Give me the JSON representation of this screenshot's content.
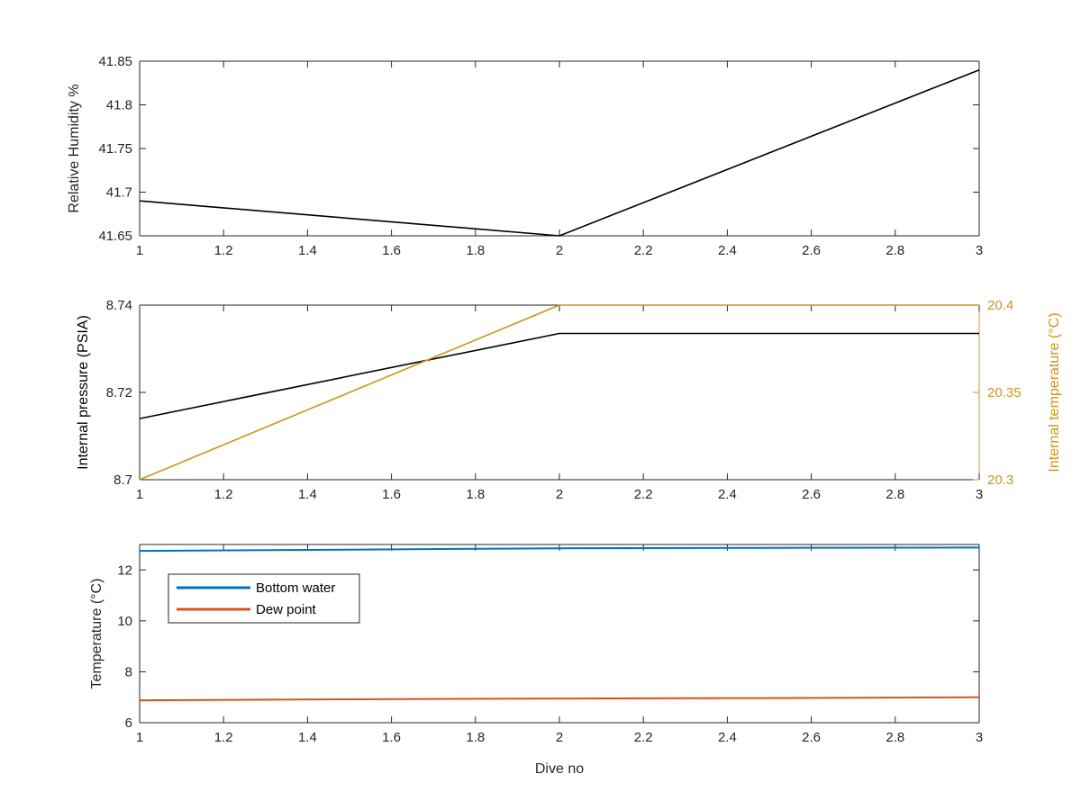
{
  "chart_data": [
    {
      "type": "line",
      "xlabel": "",
      "ylabel": "Relative Humidity %",
      "xlim": [
        1,
        3
      ],
      "ylim": [
        41.65,
        41.85
      ],
      "xticks": [
        "1",
        "1.2",
        "1.4",
        "1.6",
        "1.8",
        "2",
        "2.2",
        "2.4",
        "2.6",
        "2.8",
        "3"
      ],
      "yticks": [
        "41.65",
        "41.7",
        "41.75",
        "41.8",
        "41.85"
      ],
      "series": [
        {
          "x": [
            1,
            2,
            3
          ],
          "y": [
            41.69,
            41.65,
            41.84
          ],
          "color": "#000000"
        }
      ]
    },
    {
      "type": "line",
      "xlabel": "",
      "ylabel": "Internal pressure (PSIA)",
      "ylabel_right": "Internal temperature (°C)",
      "xlim": [
        1,
        3
      ],
      "ylim": [
        8.7,
        8.74
      ],
      "ylim_right": [
        20.3,
        20.4
      ],
      "xticks": [
        "1",
        "1.2",
        "1.4",
        "1.6",
        "1.8",
        "2",
        "2.2",
        "2.4",
        "2.6",
        "2.8",
        "3"
      ],
      "yticks": [
        "8.7",
        "8.72",
        "8.74"
      ],
      "yticks_right": [
        "20.3",
        "20.35",
        "20.4"
      ],
      "right_axis_color": "#C8961E",
      "series": [
        {
          "axis": "left",
          "x": [
            1,
            2,
            3
          ],
          "y": [
            8.714,
            8.7335,
            8.7335
          ],
          "color": "#000000"
        },
        {
          "axis": "right",
          "x": [
            1,
            2,
            3
          ],
          "y": [
            20.3,
            20.4,
            20.4
          ],
          "color": "#C8961E"
        }
      ]
    },
    {
      "type": "line",
      "xlabel": "Dive no",
      "ylabel": "Temperature (°C)",
      "xlim": [
        1,
        3
      ],
      "ylim": [
        6,
        13
      ],
      "xticks": [
        "1",
        "1.2",
        "1.4",
        "1.6",
        "1.8",
        "2",
        "2.2",
        "2.4",
        "2.6",
        "2.8",
        "3"
      ],
      "yticks": [
        "6",
        "8",
        "10",
        "12"
      ],
      "legend": "top-left",
      "series": [
        {
          "name": "Bottom water",
          "x": [
            1,
            1.5,
            2,
            2.5,
            3
          ],
          "y": [
            12.75,
            12.8,
            12.85,
            12.87,
            12.88
          ],
          "color": "#0072BD"
        },
        {
          "name": "Dew point",
          "x": [
            1,
            1.5,
            2,
            2.5,
            3
          ],
          "y": [
            6.88,
            6.92,
            6.95,
            6.97,
            7.0
          ],
          "color": "#D95319"
        }
      ]
    }
  ]
}
